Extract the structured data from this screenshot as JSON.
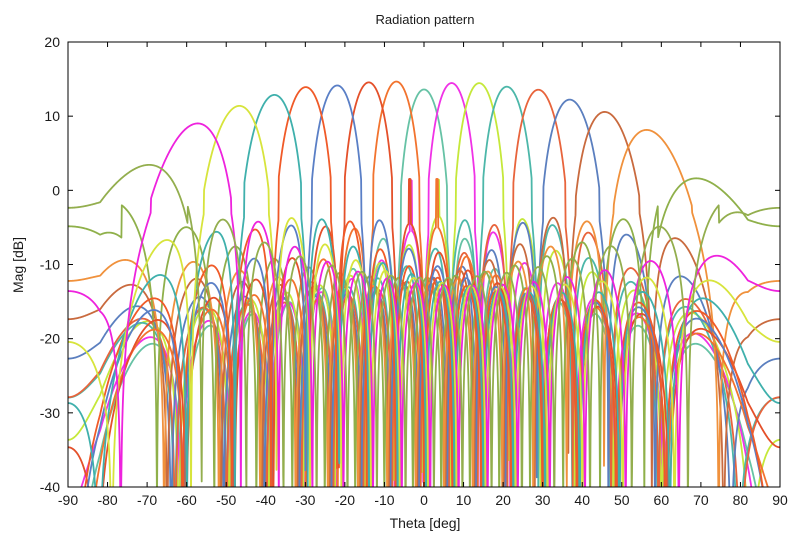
{
  "chart_data": {
    "type": "line",
    "title": "Radiation pattern",
    "xlabel": "Theta [deg]",
    "ylabel": "Mag [dB]",
    "xlim": [
      -90,
      90
    ],
    "ylim": [
      -40,
      20
    ],
    "xticks": [
      -90,
      -80,
      -70,
      -60,
      -50,
      -40,
      -30,
      -20,
      -10,
      0,
      10,
      20,
      30,
      40,
      50,
      60,
      70,
      80,
      90
    ],
    "yticks": [
      -40,
      -30,
      -20,
      -10,
      0,
      10,
      20
    ],
    "grid": false,
    "legend": "none",
    "array_elements": 16,
    "series": [
      {
        "steer_deg": 0,
        "peak_db": 13.6,
        "sidelobe_db": -6.5,
        "color": "#66c2a5"
      },
      {
        "steer_deg": 7,
        "peak_db": 14.5,
        "sidelobe_db": -5.5,
        "color": "#f032e6"
      },
      {
        "steer_deg": 14,
        "peak_db": 14.6,
        "sidelobe_db": -3.5,
        "color": "#c5e83a"
      },
      {
        "steer_deg": 21,
        "peak_db": 14.3,
        "sidelobe_db": -4.0,
        "color": "#4cb7a9"
      },
      {
        "steer_deg": 29,
        "peak_db": 14.2,
        "sidelobe_db": -4.5,
        "color": "#e8643c"
      },
      {
        "steer_deg": 37,
        "peak_db": 13.3,
        "sidelobe_db": -4.0,
        "color": "#5b7fbf"
      },
      {
        "steer_deg": 46,
        "peak_db": 12.3,
        "sidelobe_db": -3.0,
        "color": "#c96a3e"
      },
      {
        "steer_deg": 57,
        "peak_db": 11.0,
        "sidelobe_db": -3.0,
        "color": "#f0913c"
      },
      {
        "steer_deg": 72,
        "peak_db": 6.8,
        "sidelobe_db": -2.0,
        "color": "#8fb04a"
      },
      {
        "steer_deg": -7,
        "peak_db": 14.7,
        "sidelobe_db": -5.0,
        "color": "#f2732e"
      },
      {
        "steer_deg": -14,
        "peak_db": 14.7,
        "sidelobe_db": -4.5,
        "color": "#e4502a"
      },
      {
        "steer_deg": -22,
        "peak_db": 14.5,
        "sidelobe_db": -4.0,
        "color": "#5a7fc6"
      },
      {
        "steer_deg": -30,
        "peak_db": 14.6,
        "sidelobe_db": -4.0,
        "color": "#f05a28"
      },
      {
        "steer_deg": -38,
        "peak_db": 14.0,
        "sidelobe_db": -3.5,
        "color": "#3fb0ac"
      },
      {
        "steer_deg": -47,
        "peak_db": 13.2,
        "sidelobe_db": -3.0,
        "color": "#d7e43c"
      },
      {
        "steer_deg": -58,
        "peak_db": 12.0,
        "sidelobe_db": -3.0,
        "color": "#ee22dd"
      },
      {
        "steer_deg": -73,
        "peak_db": 8.8,
        "sidelobe_db": -2.0,
        "color": "#93ae4e"
      }
    ]
  }
}
